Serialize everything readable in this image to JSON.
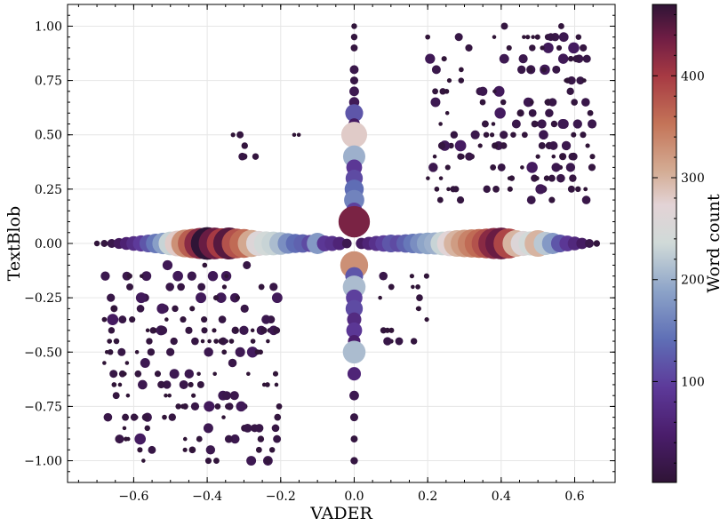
{
  "chart_data": {
    "type": "scatter",
    "title": "",
    "xlabel": "VADER",
    "ylabel": "TextBlob",
    "xlim": [
      -0.78,
      0.71
    ],
    "ylim": [
      -1.1,
      1.1
    ],
    "x_ticks": [
      -0.6,
      -0.4,
      -0.2,
      0.0,
      0.2,
      0.4,
      0.6
    ],
    "y_ticks": [
      -1.0,
      -0.75,
      -0.5,
      -0.25,
      0.0,
      0.25,
      0.5,
      0.75,
      1.0
    ],
    "x_tick_labels": [
      "−0.6",
      "−0.4",
      "−0.2",
      "0.0",
      "0.2",
      "0.4",
      "0.6"
    ],
    "y_tick_labels": [
      "−1.00",
      "−0.75",
      "−0.50",
      "−0.25",
      "0.00",
      "0.25",
      "0.50",
      "0.75",
      "1.00"
    ],
    "grid": true,
    "colorbar": {
      "label": "Word count",
      "range": [
        1,
        470
      ],
      "ticks": [
        100,
        200,
        300,
        400
      ],
      "tick_labels": [
        "100",
        "200",
        "300",
        "400"
      ],
      "colormap": "twilight_shifted"
    },
    "points_x_axis": [
      {
        "x": -0.7,
        "y": 0,
        "words": 5
      },
      {
        "x": -0.68,
        "y": 0,
        "words": 10
      },
      {
        "x": -0.66,
        "y": 0,
        "words": 20
      },
      {
        "x": -0.64,
        "y": 0,
        "words": 35
      },
      {
        "x": -0.62,
        "y": 0,
        "words": 55
      },
      {
        "x": -0.6,
        "y": 0,
        "words": 75
      },
      {
        "x": -0.58,
        "y": 0,
        "words": 95
      },
      {
        "x": -0.56,
        "y": 0,
        "words": 120
      },
      {
        "x": -0.54,
        "y": 0,
        "words": 150
      },
      {
        "x": -0.52,
        "y": 0,
        "words": 185
      },
      {
        "x": -0.5,
        "y": 0,
        "words": 230
      },
      {
        "x": -0.48,
        "y": 0,
        "words": 280
      },
      {
        "x": -0.46,
        "y": 0,
        "words": 330
      },
      {
        "x": -0.44,
        "y": 0,
        "words": 370
      },
      {
        "x": -0.42,
        "y": 0,
        "words": 420
      },
      {
        "x": -0.4,
        "y": 0,
        "words": 470
      },
      {
        "x": -0.38,
        "y": 0,
        "words": 440
      },
      {
        "x": -0.36,
        "y": 0,
        "words": 400
      },
      {
        "x": -0.34,
        "y": 0,
        "words": 450
      },
      {
        "x": -0.32,
        "y": 0,
        "words": 380
      },
      {
        "x": -0.3,
        "y": 0,
        "words": 360
      },
      {
        "x": -0.28,
        "y": 0,
        "words": 310
      },
      {
        "x": -0.26,
        "y": 0,
        "words": 260
      },
      {
        "x": -0.24,
        "y": 0,
        "words": 240
      },
      {
        "x": -0.22,
        "y": 0,
        "words": 230
      },
      {
        "x": -0.2,
        "y": 0,
        "words": 210
      },
      {
        "x": -0.18,
        "y": 0,
        "words": 170
      },
      {
        "x": -0.16,
        "y": 0,
        "words": 140
      },
      {
        "x": -0.14,
        "y": 0,
        "words": 130
      },
      {
        "x": -0.12,
        "y": 0,
        "words": 110
      },
      {
        "x": -0.1,
        "y": 0,
        "words": 180
      },
      {
        "x": -0.08,
        "y": 0,
        "words": 90
      },
      {
        "x": -0.06,
        "y": 0,
        "words": 80
      },
      {
        "x": -0.04,
        "y": 0,
        "words": 60
      },
      {
        "x": -0.02,
        "y": 0,
        "words": 25
      },
      {
        "x": 0.02,
        "y": 0,
        "words": 40
      },
      {
        "x": 0.04,
        "y": 0,
        "words": 60
      },
      {
        "x": 0.06,
        "y": 0,
        "words": 80
      },
      {
        "x": 0.08,
        "y": 0,
        "words": 100
      },
      {
        "x": 0.1,
        "y": 0,
        "words": 120
      },
      {
        "x": 0.12,
        "y": 0,
        "words": 110
      },
      {
        "x": 0.14,
        "y": 0,
        "words": 130
      },
      {
        "x": 0.16,
        "y": 0,
        "words": 150
      },
      {
        "x": 0.18,
        "y": 0,
        "words": 170
      },
      {
        "x": 0.2,
        "y": 0,
        "words": 190
      },
      {
        "x": 0.22,
        "y": 0,
        "words": 200
      },
      {
        "x": 0.24,
        "y": 0,
        "words": 230
      },
      {
        "x": 0.26,
        "y": 0,
        "words": 270
      },
      {
        "x": 0.28,
        "y": 0,
        "words": 300
      },
      {
        "x": 0.3,
        "y": 0,
        "words": 320
      },
      {
        "x": 0.32,
        "y": 0,
        "words": 340
      },
      {
        "x": 0.34,
        "y": 0,
        "words": 360
      },
      {
        "x": 0.36,
        "y": 0,
        "words": 380
      },
      {
        "x": 0.38,
        "y": 0,
        "words": 420
      },
      {
        "x": 0.4,
        "y": 0,
        "words": 440
      },
      {
        "x": 0.42,
        "y": 0,
        "words": 390
      },
      {
        "x": 0.44,
        "y": 0,
        "words": 300
      },
      {
        "x": 0.46,
        "y": 0,
        "words": 260
      },
      {
        "x": 0.48,
        "y": 0,
        "words": 240
      },
      {
        "x": 0.5,
        "y": 0,
        "words": 300
      },
      {
        "x": 0.52,
        "y": 0,
        "words": 220
      },
      {
        "x": 0.54,
        "y": 0,
        "words": 180
      },
      {
        "x": 0.56,
        "y": 0,
        "words": 120
      },
      {
        "x": 0.58,
        "y": 0,
        "words": 90
      },
      {
        "x": 0.6,
        "y": 0,
        "words": 65
      },
      {
        "x": 0.62,
        "y": 0,
        "words": 40
      },
      {
        "x": 0.64,
        "y": 0,
        "words": 20
      },
      {
        "x": 0.66,
        "y": 0,
        "words": 8
      }
    ],
    "points_y_axis": [
      {
        "x": 0,
        "y": 1.0,
        "words": 5
      },
      {
        "x": 0,
        "y": 0.95,
        "words": 8
      },
      {
        "x": 0,
        "y": 0.9,
        "words": 10
      },
      {
        "x": 0,
        "y": 0.8,
        "words": 20
      },
      {
        "x": 0,
        "y": 0.75,
        "words": 15
      },
      {
        "x": 0,
        "y": 0.7,
        "words": 25
      },
      {
        "x": 0,
        "y": 0.65,
        "words": 30
      },
      {
        "x": 0,
        "y": 0.6,
        "words": 120
      },
      {
        "x": 0,
        "y": 0.55,
        "words": 40
      },
      {
        "x": 0,
        "y": 0.5,
        "words": 280
      },
      {
        "x": 0,
        "y": 0.4,
        "words": 200
      },
      {
        "x": 0,
        "y": 0.35,
        "words": 90
      },
      {
        "x": 0,
        "y": 0.3,
        "words": 110
      },
      {
        "x": 0,
        "y": 0.25,
        "words": 140
      },
      {
        "x": 0,
        "y": 0.2,
        "words": 160
      },
      {
        "x": 0,
        "y": 0.15,
        "words": 100
      },
      {
        "x": 0,
        "y": 0.1,
        "words": 430
      },
      {
        "x": 0,
        "y": -0.1,
        "words": 330
      },
      {
        "x": 0,
        "y": -0.15,
        "words": 120
      },
      {
        "x": 0,
        "y": -0.2,
        "words": 210
      },
      {
        "x": 0,
        "y": -0.25,
        "words": 100
      },
      {
        "x": 0,
        "y": -0.3,
        "words": 110
      },
      {
        "x": 0,
        "y": -0.35,
        "words": 70
      },
      {
        "x": 0,
        "y": -0.4,
        "words": 90
      },
      {
        "x": 0,
        "y": -0.45,
        "words": 50
      },
      {
        "x": 0,
        "y": -0.5,
        "words": 210
      },
      {
        "x": 0,
        "y": -0.6,
        "words": 60
      },
      {
        "x": 0,
        "y": -0.7,
        "words": 25
      },
      {
        "x": 0,
        "y": -0.8,
        "words": 15
      },
      {
        "x": 0,
        "y": -0.9,
        "words": 10
      },
      {
        "x": 0,
        "y": -1.0,
        "words": 12
      }
    ],
    "scatter_clusters": {
      "description_free": true,
      "quadrant_I": {
        "x_range": [
          0.2,
          0.65
        ],
        "y_range": [
          0.2,
          1.0
        ],
        "word_range": [
          1,
          40
        ]
      },
      "quadrant_III": {
        "x_range": [
          -0.68,
          -0.2
        ],
        "y_range": [
          -1.0,
          -0.1
        ],
        "word_range": [
          1,
          40
        ]
      },
      "quadrant_II": {
        "x_range": [
          -0.35,
          -0.1
        ],
        "y_range": [
          0.35,
          0.55
        ],
        "word_range": [
          1,
          20
        ]
      },
      "quadrant_IV": {
        "x_range": [
          0.06,
          0.2
        ],
        "y_range": [
          -0.5,
          -0.1
        ],
        "word_range": [
          1,
          20
        ]
      }
    }
  }
}
